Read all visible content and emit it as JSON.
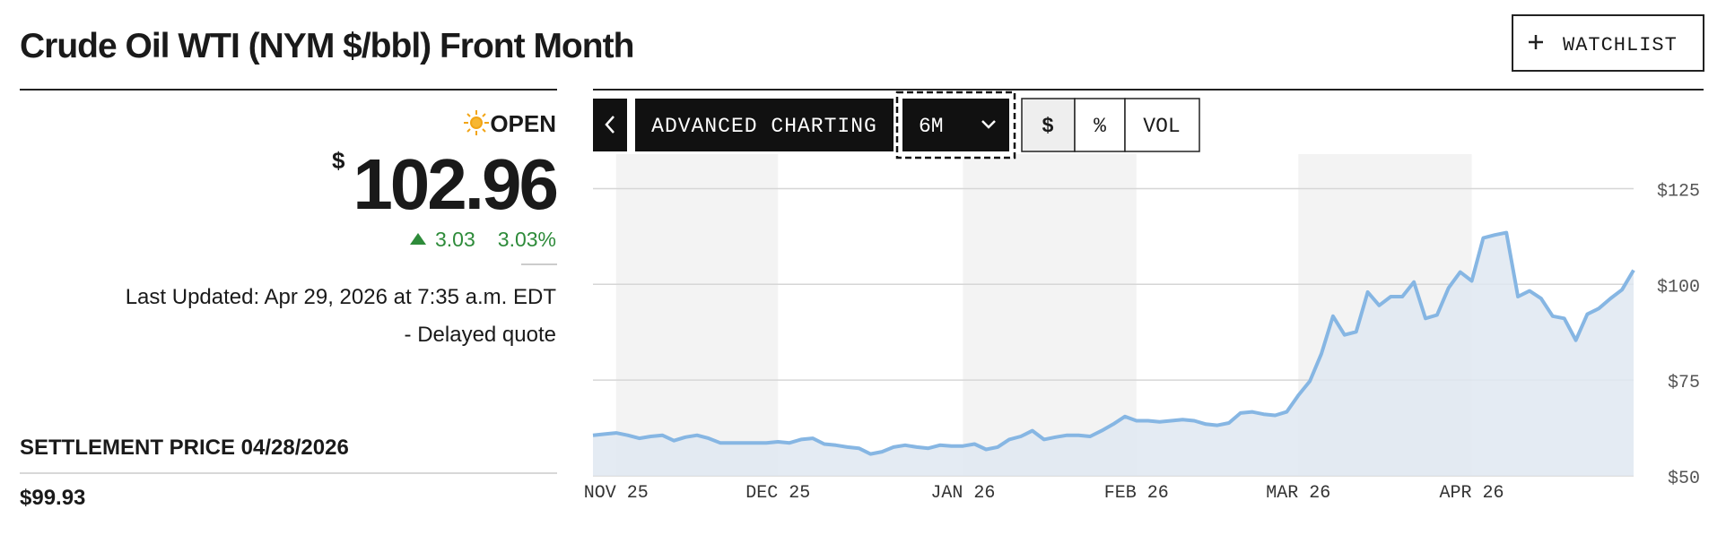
{
  "header": {
    "title": "Crude Oil WTI (NYM $/bbl) Front Month",
    "watchlist": "WATCHLIST"
  },
  "quote": {
    "status": "OPEN",
    "currency": "$",
    "price": "102.96",
    "change": "3.03",
    "change_pct": "3.03%",
    "last_updated": "Last Updated: Apr 29, 2026 at 7:35 a.m. EDT",
    "delay_note": "- Delayed quote",
    "settlement_label": "SETTLEMENT PRICE 04/28/2026",
    "settlement_value": "$99.93"
  },
  "toolbar": {
    "advanced": "ADVANCED CHARTING",
    "range": "6M",
    "dollar": "$",
    "percent": "%",
    "volume": "VOL"
  },
  "chart_data": {
    "type": "area",
    "color": "#86b6e3",
    "fill": "#dfe7f1",
    "grid": true,
    "categories": [
      null,
      null,
      "NOV 25",
      null,
      null,
      null,
      null,
      null,
      null,
      null,
      null,
      null,
      null,
      null,
      null,
      null,
      "DEC 25",
      null,
      null,
      null,
      null,
      null,
      null,
      null,
      null,
      null,
      null,
      null,
      null,
      null,
      null,
      null,
      "JAN 26",
      null,
      null,
      null,
      null,
      null,
      null,
      null,
      null,
      null,
      null,
      null,
      null,
      null,
      null,
      "FEB 26",
      null,
      null,
      null,
      null,
      null,
      null,
      null,
      null,
      null,
      null,
      null,
      null,
      null,
      "MAR 26",
      null,
      null,
      null,
      null,
      null,
      null,
      null,
      null,
      null,
      null,
      null,
      null,
      null,
      null,
      "APR 26",
      null,
      null,
      null,
      null,
      null,
      null,
      null,
      null,
      null,
      null,
      null,
      null,
      null,
      null
    ],
    "values": [
      60.6,
      60.9,
      61.2,
      60.6,
      59.8,
      60.3,
      60.6,
      59.2,
      60.1,
      60.6,
      59.8,
      58.6,
      58.6,
      58.6,
      58.6,
      58.6,
      58.9,
      58.6,
      59.5,
      59.8,
      58.3,
      58.0,
      57.5,
      57.2,
      55.7,
      56.3,
      57.5,
      58.0,
      57.5,
      57.2,
      58.0,
      57.8,
      57.8,
      58.3,
      56.9,
      57.5,
      59.5,
      60.3,
      61.8,
      59.5,
      60.1,
      60.6,
      60.6,
      60.3,
      61.8,
      63.5,
      65.5,
      64.4,
      64.4,
      64.1,
      64.4,
      64.7,
      64.4,
      63.5,
      63.2,
      63.8,
      66.4,
      66.7,
      66.1,
      65.8,
      66.7,
      71.0,
      74.7,
      81.9,
      91.7,
      86.8,
      87.6,
      98.0,
      94.5,
      96.8,
      96.8,
      100.6,
      91.1,
      92.0,
      99.1,
      103.2,
      100.9,
      112.1,
      112.9,
      113.5,
      96.8,
      98.3,
      96.3,
      91.7,
      91.1,
      85.4,
      92.2,
      93.7,
      96.3,
      98.6,
      103.7
    ],
    "ylim": [
      50,
      134
    ],
    "yticks": [
      {
        "value": 50,
        "label": "$50"
      },
      {
        "value": 75,
        "label": "$75"
      },
      {
        "value": 100,
        "label": "$100"
      },
      {
        "value": 125,
        "label": "$125"
      }
    ]
  }
}
